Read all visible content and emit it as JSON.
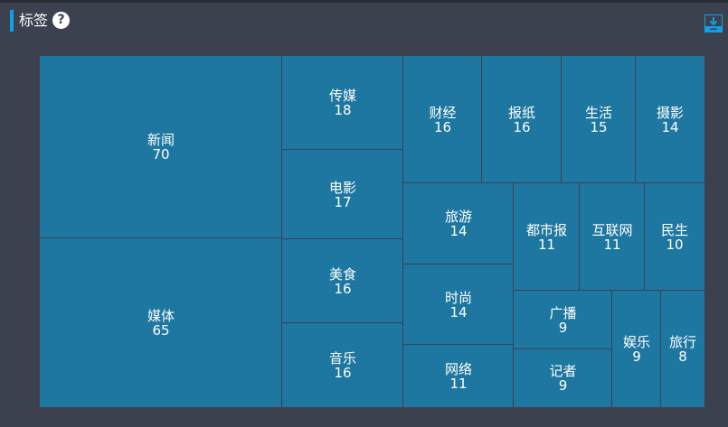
{
  "header": {
    "title": "标签",
    "help_icon": "question-circle-icon",
    "download_icon": "download-icon"
  },
  "colors": {
    "tile": "#1e77a0",
    "accent": "#10a0e8",
    "background": "#3c4150"
  },
  "chart_data": {
    "type": "treemap",
    "items": [
      {
        "label": "新闻",
        "value": 70
      },
      {
        "label": "媒体",
        "value": 65
      },
      {
        "label": "传媒",
        "value": 18
      },
      {
        "label": "电影",
        "value": 17
      },
      {
        "label": "美食",
        "value": 16
      },
      {
        "label": "音乐",
        "value": 16
      },
      {
        "label": "财经",
        "value": 16
      },
      {
        "label": "报纸",
        "value": 16
      },
      {
        "label": "生活",
        "value": 15
      },
      {
        "label": "摄影",
        "value": 14
      },
      {
        "label": "旅游",
        "value": 14
      },
      {
        "label": "时尚",
        "value": 14
      },
      {
        "label": "网络",
        "value": 11
      },
      {
        "label": "都市报",
        "value": 11
      },
      {
        "label": "互联网",
        "value": 11
      },
      {
        "label": "民生",
        "value": 10
      },
      {
        "label": "广播",
        "value": 9
      },
      {
        "label": "记者",
        "value": 9
      },
      {
        "label": "娱乐",
        "value": 9
      },
      {
        "label": "旅行",
        "value": 8
      }
    ]
  }
}
